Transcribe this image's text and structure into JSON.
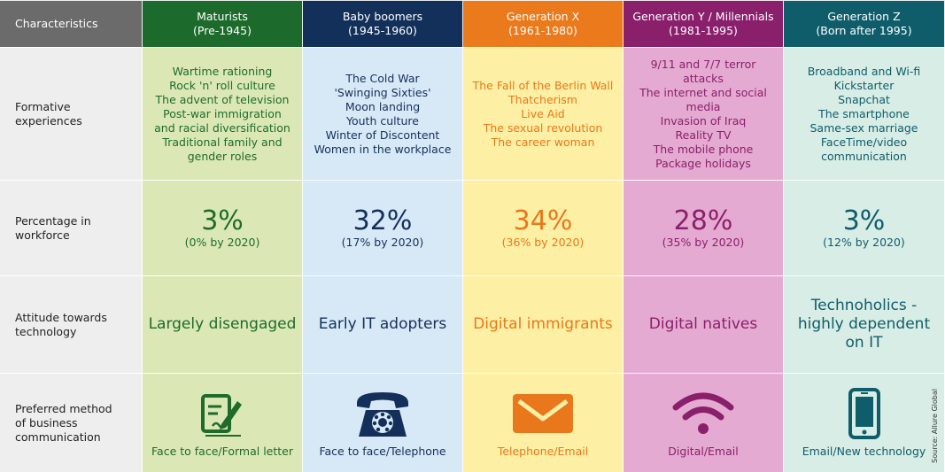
{
  "row_labels": {
    "characteristics": "Characteristics",
    "formative": [
      "Formative",
      "experiences"
    ],
    "percentage": [
      "Percentage in",
      "workforce"
    ],
    "attitude": [
      "Attitude towards",
      "technology"
    ],
    "preferred": [
      "Preferred method",
      "of business",
      "communication"
    ]
  },
  "generations": [
    {
      "name": "Maturists",
      "years": "(Pre-1945)",
      "header_color": "#1d6b2c",
      "body_color": "#dbe8b6",
      "text_color": "#1e6b2b",
      "experiences": [
        "Wartime rationing",
        "Rock 'n' roll culture",
        "The advent of television",
        "Post-war immigration",
        "and racial diversification",
        "Traditional family and",
        "gender roles"
      ],
      "percentage": "3%",
      "percentage_2020": "(0% by 2020)",
      "attitude": [
        "Largely disengaged"
      ],
      "communication": [
        "Face to face/",
        "Formal letter"
      ],
      "icon": "letter-writing-icon"
    },
    {
      "name": "Baby boomers",
      "years": "(1945-1960)",
      "header_color": "#13305a",
      "body_color": "#d7e9f6",
      "text_color": "#14305a",
      "experiences": [
        "The Cold War",
        "'Swinging Sixties'",
        "Moon landing",
        "Youth culture",
        "Winter of Discontent",
        "Women in the workplace"
      ],
      "percentage": "32%",
      "percentage_2020": "(17% by 2020)",
      "attitude": [
        "Early IT adopters"
      ],
      "communication": [
        "Face to face/",
        "Telephone"
      ],
      "icon": "rotary-telephone-icon"
    },
    {
      "name": "Generation X",
      "years": "(1961-1980)",
      "header_color": "#ea7a1c",
      "body_color": "#fdf0a4",
      "text_color": "#e8781b",
      "experiences": [
        "The Fall of the Berlin Wall",
        "Thatcherism",
        "Live Aid",
        "The sexual revolution",
        "The career woman"
      ],
      "percentage": "34%",
      "percentage_2020": "(36% by 2020)",
      "attitude": [
        "Digital immigrants"
      ],
      "communication": [
        "Telephone/Email"
      ],
      "icon": "envelope-icon"
    },
    {
      "name": "Generation Y / Millennials",
      "years": "(1981-1995)",
      "header_color": "#8a1f6c",
      "body_color": "#e5aad1",
      "text_color": "#8a1f6c",
      "experiences": [
        "9/11 and 7/7 terror",
        "attacks",
        "The internet and social",
        "media",
        "Invasion of Iraq",
        "Reality TV",
        "The mobile phone",
        "Package holidays"
      ],
      "percentage": "28%",
      "percentage_2020": "(35% by 2020)",
      "attitude": [
        "Digital natives"
      ],
      "communication": [
        "Digital/Email"
      ],
      "icon": "wifi-icon"
    },
    {
      "name": "Generation Z",
      "years": "(Born after 1995)",
      "header_color": "#0f5d6a",
      "body_color": "#d8ede6",
      "text_color": "#0f5d6a",
      "experiences": [
        "Broadband and Wi-fi",
        "Kickstarter",
        "Snapchat",
        "The smartphone",
        "Same-sex marriage",
        "FaceTime/video",
        "communication"
      ],
      "percentage": "3%",
      "percentage_2020": "(12% by 2020)",
      "attitude": [
        "Technoholics -",
        "highly dependent",
        "on IT"
      ],
      "communication": [
        "Email/",
        "New technology"
      ],
      "icon": "smartphone-icon"
    }
  ],
  "source": "Source: Allure Global"
}
